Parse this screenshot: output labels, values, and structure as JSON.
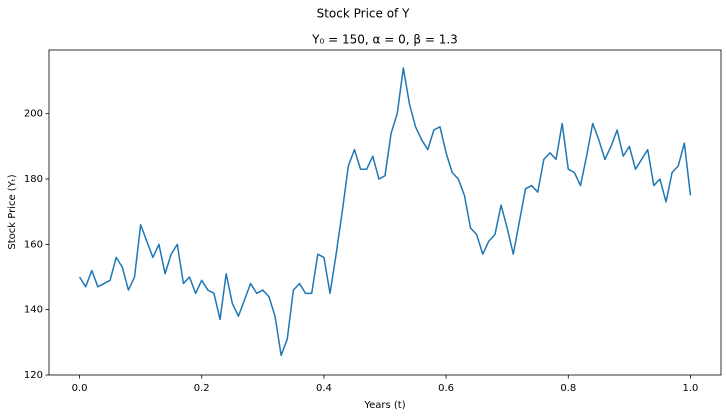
{
  "chart_data": {
    "type": "line",
    "title": "Stock Price of Y",
    "subtitle": "Y₀ = 150, α = 0, β = 1.3",
    "x_label": "Years (t)",
    "y_label": "Stock Price (Yₜ)",
    "x": [
      0.0,
      0.01,
      0.02,
      0.03,
      0.04,
      0.05,
      0.06,
      0.07,
      0.08,
      0.09,
      0.1,
      0.11,
      0.12,
      0.13,
      0.14,
      0.15,
      0.16,
      0.17,
      0.18,
      0.19,
      0.2,
      0.21,
      0.22,
      0.23,
      0.24,
      0.25,
      0.26,
      0.27,
      0.28,
      0.29,
      0.3,
      0.31,
      0.32,
      0.33,
      0.34,
      0.35,
      0.36,
      0.37,
      0.38,
      0.39,
      0.4,
      0.41,
      0.42,
      0.43,
      0.44,
      0.45,
      0.46,
      0.47,
      0.48,
      0.49,
      0.5,
      0.51,
      0.52,
      0.53,
      0.54,
      0.55,
      0.56,
      0.57,
      0.58,
      0.59,
      0.6,
      0.61,
      0.62,
      0.63,
      0.64,
      0.65,
      0.66,
      0.67,
      0.68,
      0.69,
      0.7,
      0.71,
      0.72,
      0.73,
      0.74,
      0.75,
      0.76,
      0.77,
      0.78,
      0.79,
      0.8,
      0.81,
      0.82,
      0.83,
      0.84,
      0.85,
      0.86,
      0.87,
      0.88,
      0.89,
      0.9,
      0.91,
      0.92,
      0.93,
      0.94,
      0.95,
      0.96,
      0.97,
      0.98,
      0.99,
      1.0
    ],
    "series": [
      {
        "name": "Y",
        "color": "#1f77b4",
        "values": [
          150,
          147,
          152,
          147,
          148,
          149,
          156,
          153,
          146,
          150,
          166,
          161,
          156,
          160,
          151,
          157,
          160,
          148,
          150,
          145,
          149,
          146,
          145,
          137,
          151,
          142,
          138,
          143,
          148,
          145,
          146,
          144,
          138,
          126,
          131,
          146,
          148,
          145,
          145,
          157,
          156,
          145,
          157,
          170,
          184,
          189,
          183,
          183,
          187,
          180,
          181,
          194,
          200,
          214,
          203,
          196,
          192,
          189,
          195,
          196,
          188,
          182,
          180,
          175,
          165,
          163,
          157,
          161,
          163,
          172,
          165,
          157,
          167,
          177,
          178,
          176,
          186,
          188,
          186,
          197,
          183,
          182,
          178,
          187,
          197,
          192,
          186,
          190,
          195,
          187,
          190,
          183,
          186,
          189,
          178,
          180,
          173,
          182,
          184,
          191,
          175
        ]
      }
    ],
    "xlim": [
      -0.05,
      1.05
    ],
    "ylim": [
      120,
      219.5
    ],
    "xticks": [
      {
        "value": 0,
        "label": "0.0"
      },
      0.2,
      0.4,
      0.6,
      0.8,
      {
        "value": 1,
        "label": "1.0"
      }
    ],
    "yticks": [
      120,
      140,
      160,
      180,
      200
    ]
  }
}
